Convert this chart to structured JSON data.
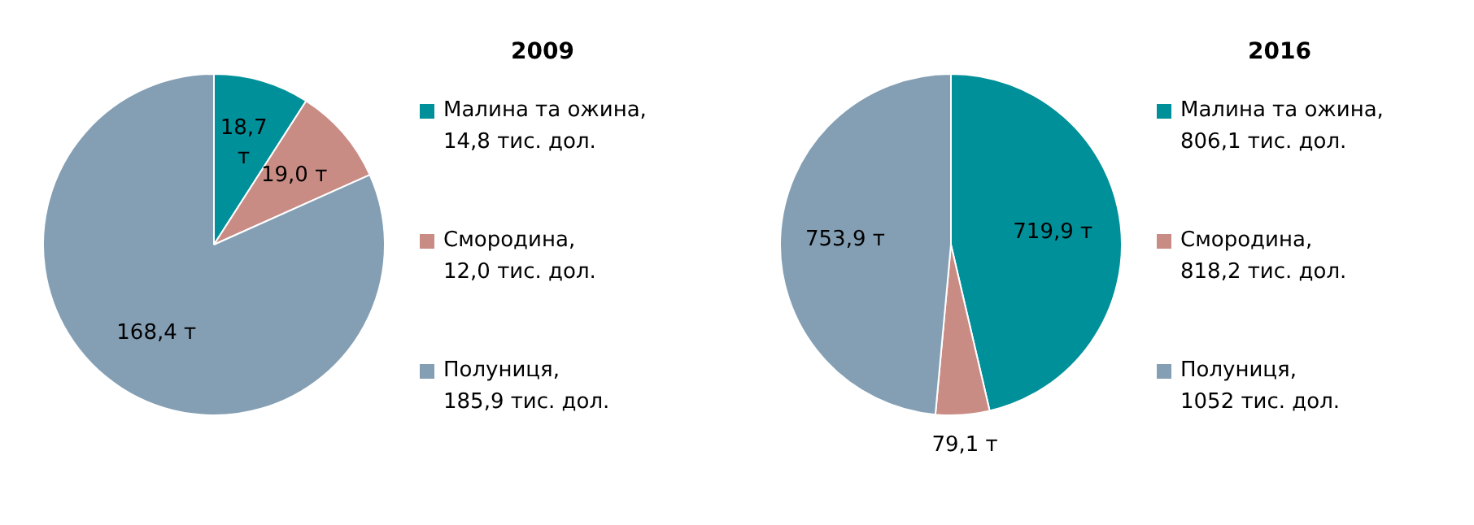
{
  "chart_data": [
    {
      "type": "pie",
      "title": "2009",
      "legend": "right",
      "categories": [
        "Малина та ожина,\n14,8 тис. дол.",
        "Смородина,\n12,0 тис. дол.",
        "Полуниця,\n185,9 тис. дол."
      ],
      "values": [
        18.7,
        19.0,
        168.4
      ],
      "value_labels": [
        "18,7\nт",
        "19,0 т",
        "168,4 т"
      ],
      "colors": [
        "#00909a",
        "#c98c84",
        "#849fb4"
      ]
    },
    {
      "type": "pie",
      "title": "2016",
      "legend": "right",
      "categories": [
        "Малина та ожина,\n806,1 тис. дол.",
        "Смородина,\n818,2 тис. дол.",
        "Полуниця,\n1052 тис. дол."
      ],
      "values": [
        719.9,
        79.1,
        753.9
      ],
      "value_labels": [
        "719,9  т",
        "79,1 т",
        "753,9 т"
      ],
      "colors": [
        "#00909a",
        "#c98c84",
        "#849fb4"
      ]
    }
  ]
}
